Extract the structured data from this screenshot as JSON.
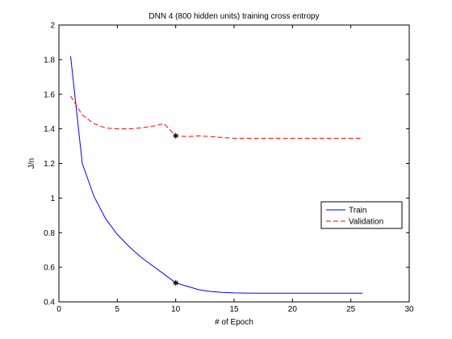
{
  "chart_data": {
    "type": "line",
    "title": "DNN 4 (800 hidden units) training cross entropy",
    "xlabel": "# of Epoch",
    "ylabel": "J/n",
    "xlim": [
      0,
      30
    ],
    "ylim": [
      0.4,
      2
    ],
    "xticks": [
      0,
      5,
      10,
      15,
      20,
      25,
      30
    ],
    "yticks": [
      0.4,
      0.6,
      0.8,
      1,
      1.2,
      1.4,
      1.6,
      1.8,
      2
    ],
    "grid": false,
    "legend_position": "right",
    "series": [
      {
        "name": "Train",
        "color": "#0000ff",
        "style": "solid",
        "x": [
          1,
          2,
          3,
          4,
          5,
          6,
          7,
          8,
          9,
          10,
          11,
          12,
          13,
          14,
          15,
          16,
          17,
          18,
          19,
          20,
          21,
          22,
          23,
          24,
          25,
          26
        ],
        "y": [
          1.82,
          1.2,
          1.01,
          0.88,
          0.79,
          0.72,
          0.66,
          0.61,
          0.56,
          0.51,
          0.49,
          0.47,
          0.46,
          0.455,
          0.452,
          0.451,
          0.45,
          0.45,
          0.45,
          0.45,
          0.45,
          0.45,
          0.45,
          0.45,
          0.45,
          0.45
        ]
      },
      {
        "name": "Validation",
        "color": "#ff0000",
        "style": "dashed",
        "x": [
          1,
          2,
          3,
          4,
          5,
          6,
          7,
          8,
          9,
          10,
          11,
          12,
          13,
          14,
          15,
          16,
          17,
          18,
          19,
          20,
          21,
          22,
          23,
          24,
          25,
          26
        ],
        "y": [
          1.59,
          1.48,
          1.43,
          1.405,
          1.4,
          1.4,
          1.405,
          1.415,
          1.43,
          1.36,
          1.355,
          1.36,
          1.355,
          1.35,
          1.345,
          1.345,
          1.345,
          1.345,
          1.345,
          1.345,
          1.345,
          1.345,
          1.345,
          1.345,
          1.345,
          1.345
        ]
      }
    ],
    "markers": [
      {
        "x": 10,
        "y": 0.51,
        "symbol": "*"
      },
      {
        "x": 10,
        "y": 1.36,
        "symbol": "*"
      }
    ]
  }
}
